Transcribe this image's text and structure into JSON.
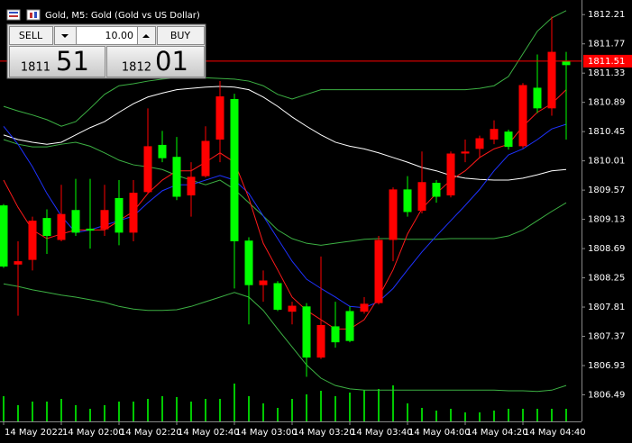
{
  "header": {
    "title": "Gold, M5:  Gold (Gold vs US Dollar)"
  },
  "trade_panel": {
    "sell_label": "SELL",
    "buy_label": "BUY",
    "volume": "10.00",
    "bid_prefix": "1811",
    "bid_digits": "51",
    "ask_prefix": "1812",
    "ask_digits": "01"
  },
  "chart_data": {
    "type": "candlestick",
    "categories": [
      "14 May 2022",
      null,
      null,
      null,
      "14 May 02:00",
      null,
      null,
      null,
      "14 May 02:20",
      null,
      null,
      null,
      "14 May 02:40",
      null,
      null,
      null,
      "14 May 03:00",
      null,
      null,
      null,
      "14 May 03:20",
      null,
      null,
      null,
      "14 May 03:40",
      null,
      null,
      null,
      "14 May 04:00",
      null,
      null,
      null,
      "14 May 04:20",
      null,
      null,
      null,
      "14 May 04:40",
      null,
      null,
      null
    ],
    "open": [
      1808.42,
      1808.5,
      1809.11,
      1808.88,
      1809.21,
      1808.93,
      1808.96,
      1809.27,
      1808.93,
      1809.53,
      1810.23,
      1810.05,
      1809.47,
      1809.77,
      1810.31,
      1810.98,
      1808.8,
      1808.14,
      1808.21,
      1807.77,
      1807.83,
      1807.05,
      1807.54,
      1807.28,
      1807.3,
      1807.86,
      1808.82,
      1809.58,
      1809.24,
      1809.69,
      1809.47,
      1810.12,
      1810.15,
      1810.35,
      1810.49,
      1810.22,
      1811.15,
      1810.8,
      1811.65,
      1811.45
    ],
    "high": [
      1809.36,
      1808.8,
      1809.17,
      1809.28,
      1809.65,
      1809.74,
      1809.74,
      1809.65,
      1809.72,
      1809.72,
      1810.8,
      1810.46,
      1810.37,
      1809.99,
      1810.53,
      1811.21,
      1811.02,
      1808.86,
      1808.36,
      1808.2,
      1807.89,
      1807.87,
      1808.57,
      1807.89,
      1807.82,
      1807.96,
      1808.88,
      1809.61,
      1809.78,
      1810.15,
      1809.72,
      1810.15,
      1810.33,
      1810.39,
      1810.62,
      1810.48,
      1811.18,
      1811.61,
      1812.18,
      1811.65
    ],
    "low": [
      1808.4,
      1807.68,
      1808.36,
      1808.61,
      1808.8,
      1808.88,
      1808.69,
      1808.88,
      1808.74,
      1808.8,
      1809.51,
      1809.99,
      1809.42,
      1809.17,
      1809.76,
      1809.99,
      1808.09,
      1807.55,
      1807.89,
      1807.75,
      1807.55,
      1806.76,
      1807.03,
      1807.2,
      1807.28,
      1807.71,
      1807.85,
      1808.5,
      1809.17,
      1809.22,
      1809.38,
      1809.46,
      1809.99,
      1810.06,
      1810.26,
      1810.18,
      1810.2,
      1810.73,
      1810.69,
      1810.33
    ],
    "close": [
      1809.34,
      1808.45,
      1808.52,
      1809.15,
      1808.82,
      1809.27,
      1808.99,
      1808.98,
      1809.45,
      1808.93,
      1809.54,
      1810.25,
      1810.07,
      1809.49,
      1809.78,
      1810.33,
      1810.94,
      1808.81,
      1808.14,
      1808.17,
      1807.74,
      1807.82,
      1807.05,
      1807.52,
      1807.75,
      1807.74,
      1807.87,
      1808.82,
      1809.58,
      1809.26,
      1809.68,
      1809.49,
      1810.12,
      1810.19,
      1810.33,
      1810.45,
      1810.23,
      1811.11,
      1810.8,
      1811.51
    ],
    "up_color": "#00ff00",
    "down_color": "#ff0000",
    "volume": [
      28,
      18,
      22,
      22,
      25,
      18,
      14,
      18,
      22,
      22,
      25,
      28,
      27,
      22,
      25,
      25,
      42,
      28,
      20,
      15,
      25,
      30,
      34,
      28,
      32,
      35,
      36,
      40,
      20,
      15,
      12,
      14,
      10,
      10,
      12,
      14,
      14,
      14,
      14,
      14
    ],
    "volume_color": "#00c800",
    "lines": [
      {
        "color": "#3cb043",
        "values": [
          1810.83,
          1810.76,
          1810.7,
          1810.63,
          1810.53,
          1810.6,
          1810.8,
          1811.01,
          1811.14,
          1811.17,
          1811.21,
          1811.24,
          1811.26,
          1811.28,
          1811.26,
          1811.25,
          1811.24,
          1811.21,
          1811.14,
          1811.01,
          1810.94,
          1811.01,
          1811.08,
          1811.08,
          1811.08,
          1811.08,
          1811.08,
          1811.08,
          1811.08,
          1811.08,
          1811.08,
          1811.08,
          1811.08,
          1811.1,
          1811.14,
          1811.28,
          1811.62,
          1811.96,
          1812.16,
          1812.27
        ]
      },
      {
        "color": "#ffffff",
        "values": [
          1810.4,
          1810.33,
          1810.29,
          1810.26,
          1810.29,
          1810.4,
          1810.51,
          1810.6,
          1810.74,
          1810.87,
          1810.97,
          1811.03,
          1811.08,
          1811.1,
          1811.12,
          1811.13,
          1811.12,
          1811.08,
          1810.97,
          1810.83,
          1810.67,
          1810.53,
          1810.4,
          1810.29,
          1810.23,
          1810.19,
          1810.13,
          1810.06,
          1809.99,
          1809.91,
          1809.86,
          1809.79,
          1809.75,
          1809.73,
          1809.72,
          1809.72,
          1809.75,
          1809.8,
          1809.86,
          1809.88
        ]
      },
      {
        "color": "#3cb043",
        "values": [
          1810.33,
          1810.26,
          1810.22,
          1810.22,
          1810.26,
          1810.29,
          1810.23,
          1810.13,
          1810.02,
          1809.95,
          1809.92,
          1809.88,
          1809.79,
          1809.72,
          1809.65,
          1809.72,
          1809.58,
          1809.38,
          1809.18,
          1808.97,
          1808.84,
          1808.77,
          1808.74,
          1808.77,
          1808.8,
          1808.83,
          1808.84,
          1808.84,
          1808.83,
          1808.83,
          1808.83,
          1808.84,
          1808.84,
          1808.84,
          1808.84,
          1808.88,
          1808.97,
          1809.11,
          1809.25,
          1809.38
        ]
      },
      {
        "color": "#3cb043",
        "values": [
          1808.16,
          1808.12,
          1808.07,
          1808.03,
          1807.99,
          1807.96,
          1807.92,
          1807.88,
          1807.82,
          1807.78,
          1807.76,
          1807.76,
          1807.77,
          1807.82,
          1807.89,
          1807.96,
          1808.03,
          1807.96,
          1807.76,
          1807.48,
          1807.21,
          1806.94,
          1806.74,
          1806.63,
          1806.58,
          1806.56,
          1806.56,
          1806.56,
          1806.56,
          1806.56,
          1806.56,
          1806.56,
          1806.56,
          1806.56,
          1806.56,
          1806.55,
          1806.55,
          1806.54,
          1806.56,
          1806.63
        ]
      },
      {
        "color": "#1e32ff",
        "values": [
          1810.53,
          1810.26,
          1809.92,
          1809.52,
          1809.18,
          1808.93,
          1808.97,
          1809.04,
          1809.11,
          1809.18,
          1809.38,
          1809.56,
          1809.65,
          1809.65,
          1809.72,
          1809.79,
          1809.72,
          1809.52,
          1809.18,
          1808.84,
          1808.5,
          1808.23,
          1808.09,
          1807.96,
          1807.82,
          1807.8,
          1807.89,
          1808.09,
          1808.37,
          1808.64,
          1808.88,
          1809.11,
          1809.34,
          1809.58,
          1809.86,
          1810.1,
          1810.19,
          1810.33,
          1810.49,
          1810.56
        ]
      },
      {
        "color": "#ff1a1a",
        "values": [
          1809.72,
          1809.31,
          1808.97,
          1808.84,
          1808.91,
          1808.97,
          1808.97,
          1808.97,
          1809.11,
          1809.25,
          1809.52,
          1809.72,
          1809.86,
          1809.86,
          1809.99,
          1810.13,
          1809.99,
          1809.45,
          1808.77,
          1808.37,
          1807.96,
          1807.76,
          1807.62,
          1807.48,
          1807.48,
          1807.62,
          1807.96,
          1808.37,
          1808.91,
          1809.29,
          1809.52,
          1809.72,
          1809.86,
          1810.06,
          1810.19,
          1810.26,
          1810.53,
          1810.74,
          1810.87,
          1811.08
        ]
      }
    ],
    "bid_line": {
      "value": 1811.51,
      "label": "1811.51",
      "color": "#ff0000"
    },
    "ylim": [
      1806.09,
      1812.43
    ],
    "yticks": [
      1812.21,
      1811.77,
      1811.33,
      1810.89,
      1810.45,
      1810.01,
      1809.57,
      1809.13,
      1808.69,
      1808.25,
      1807.81,
      1807.37,
      1806.93,
      1806.49
    ]
  }
}
